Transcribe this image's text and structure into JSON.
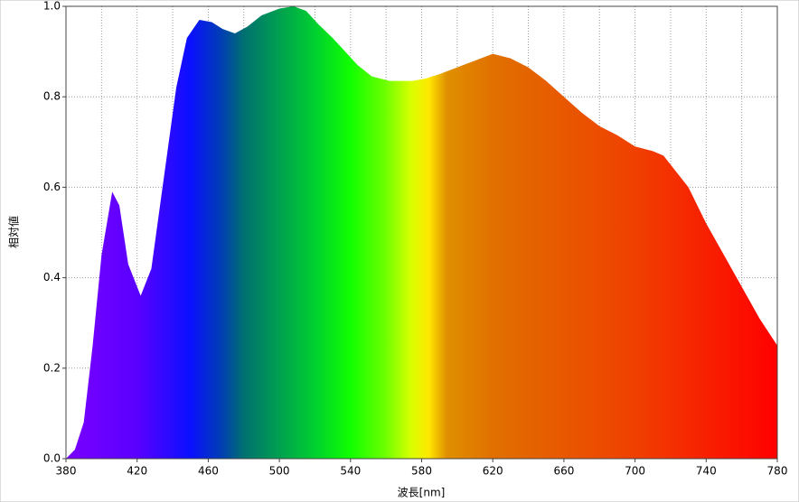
{
  "chart_data": {
    "type": "area",
    "xlabel": "波長[nm]",
    "ylabel": "相対値",
    "x": [
      380,
      385,
      390,
      395,
      400,
      406,
      410,
      415,
      422,
      428,
      435,
      442,
      448,
      455,
      462,
      468,
      475,
      482,
      490,
      500,
      508,
      515,
      522,
      530,
      537,
      544,
      552,
      562,
      575,
      582,
      590,
      600,
      610,
      620,
      630,
      640,
      650,
      660,
      670,
      680,
      690,
      700,
      710,
      716,
      722,
      730,
      740,
      750,
      760,
      770,
      780
    ],
    "values": [
      0,
      0.02,
      0.08,
      0.25,
      0.45,
      0.59,
      0.56,
      0.43,
      0.36,
      0.42,
      0.62,
      0.82,
      0.93,
      0.97,
      0.965,
      0.95,
      0.94,
      0.955,
      0.98,
      0.995,
      1.0,
      0.99,
      0.96,
      0.93,
      0.9,
      0.87,
      0.845,
      0.835,
      0.835,
      0.84,
      0.85,
      0.865,
      0.88,
      0.895,
      0.885,
      0.865,
      0.835,
      0.8,
      0.765,
      0.735,
      0.715,
      0.69,
      0.68,
      0.67,
      0.64,
      0.6,
      0.52,
      0.45,
      0.38,
      0.31,
      0.25
    ],
    "xlim": [
      380,
      780
    ],
    "xticks": [
      380,
      420,
      460,
      500,
      540,
      580,
      620,
      660,
      700,
      740,
      780
    ],
    "ylim": [
      0,
      1
    ],
    "yticks": [
      {
        "value": 0,
        "label": "0.0"
      },
      0.2,
      0.4,
      0.6,
      0.8,
      {
        "value": 1,
        "label": "1.0"
      }
    ],
    "grid": true
  }
}
